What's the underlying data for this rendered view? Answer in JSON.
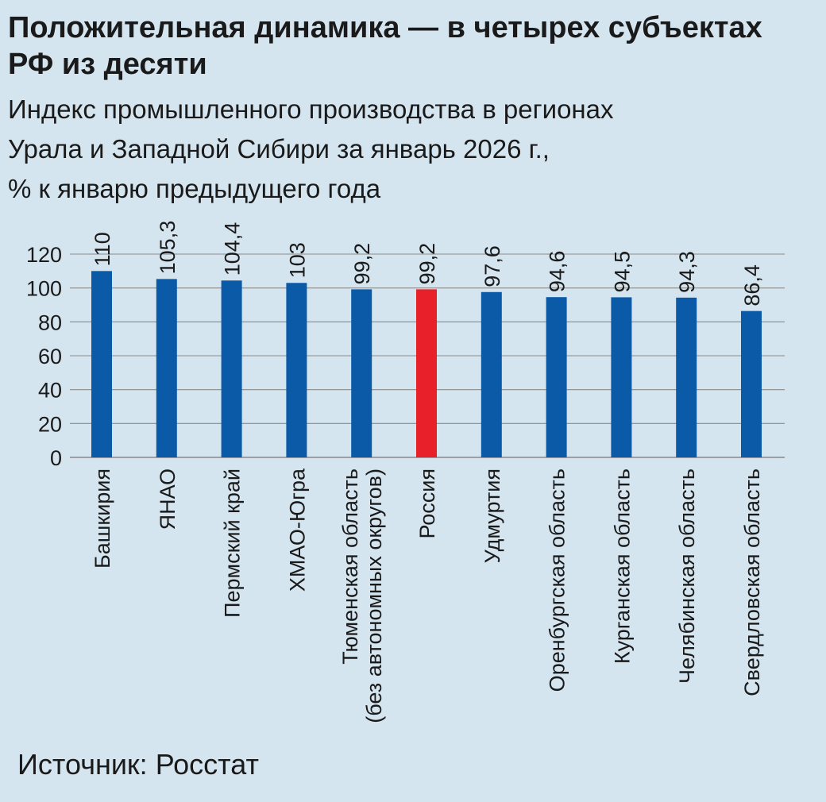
{
  "chart_data": {
    "type": "bar",
    "title": "Положительная динамика — в четырех субъектах РФ из десяти",
    "subtitle_lines": [
      "Индекс промышленного производства в регионах",
      "Урала и Западной Сибири за январь 2026 г.,",
      "% к январю предыдущего года"
    ],
    "categories": [
      [
        "Башкирия"
      ],
      [
        "ЯНАО"
      ],
      [
        "Пермский край"
      ],
      [
        "ХМАО-Югра"
      ],
      [
        "Тюменская область",
        "(без автономных округов)"
      ],
      [
        "Россия"
      ],
      [
        "Удмуртия"
      ],
      [
        "Оренбургская область"
      ],
      [
        "Курганская область"
      ],
      [
        "Челябинская область"
      ],
      [
        "Свердловская область"
      ]
    ],
    "values": [
      110,
      105.3,
      104.4,
      103,
      99.2,
      99.2,
      97.6,
      94.6,
      94.5,
      94.3,
      86.4
    ],
    "value_labels": [
      "110",
      "105,3",
      "104,4",
      "103",
      "99,2",
      "99,2",
      "97,6",
      "94,6",
      "94,5",
      "94,3",
      "86,4"
    ],
    "highlight_index": 5,
    "colors": {
      "bar": "#0a5aa8",
      "highlight": "#e8202a",
      "grid": "#8a8a8a"
    },
    "yticks": [
      0,
      20,
      40,
      60,
      80,
      100,
      120
    ],
    "ylim": [
      0,
      120
    ],
    "xlabel": "",
    "ylabel": "",
    "grid": true
  },
  "source": "Источник: Росстат"
}
